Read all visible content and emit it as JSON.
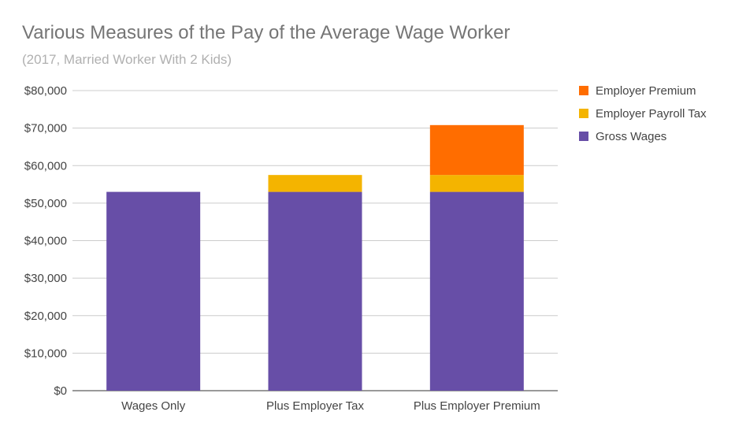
{
  "chart_data": {
    "type": "bar",
    "stacked": true,
    "title": "Various Measures of the Pay of the Average Wage Worker",
    "subtitle": "(2017, Married Worker With 2 Kids)",
    "categories": [
      "Wages Only",
      "Plus Employer Tax",
      "Plus Employer Premium"
    ],
    "series": [
      {
        "name": "Gross Wages",
        "color": "#674ea7",
        "values": [
          53000,
          53000,
          53000
        ]
      },
      {
        "name": "Employer Payroll Tax",
        "color": "#f4b400",
        "values": [
          0,
          4500,
          4500
        ]
      },
      {
        "name": "Employer Premium",
        "color": "#ff6d00",
        "values": [
          0,
          0,
          13300
        ]
      }
    ],
    "ylim": [
      0,
      80000
    ],
    "yticks": [
      0,
      10000,
      20000,
      30000,
      40000,
      50000,
      60000,
      70000,
      80000
    ],
    "ytick_labels": [
      "$0",
      "$10,000",
      "$20,000",
      "$30,000",
      "$40,000",
      "$50,000",
      "$60,000",
      "$70,000",
      "$80,000"
    ],
    "grid": true,
    "legend_position": "right",
    "legend_order": [
      "Employer Premium",
      "Employer Payroll Tax",
      "Gross Wages"
    ]
  }
}
